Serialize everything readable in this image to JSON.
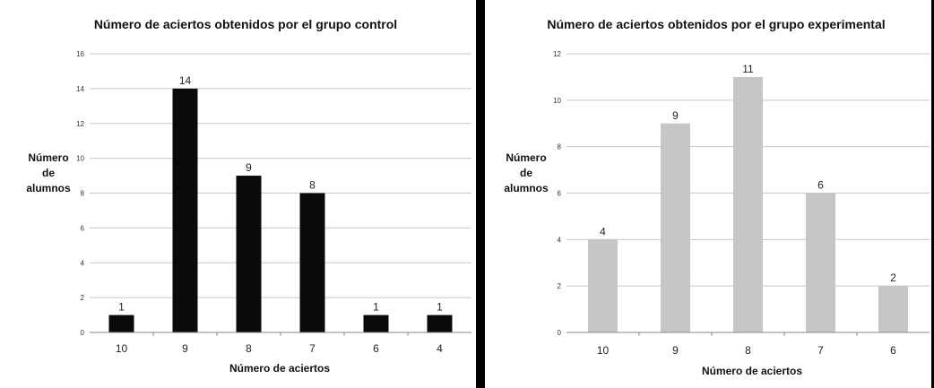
{
  "chart_data": [
    {
      "type": "bar",
      "title": "Número de aciertos obtenidos por el grupo control",
      "xlabel": "Número de aciertos",
      "ylabel": [
        "Número",
        "de",
        "alumnos"
      ],
      "categories": [
        "10",
        "9",
        "8",
        "7",
        "6",
        "4"
      ],
      "values": [
        1,
        14,
        9,
        8,
        1,
        1
      ],
      "data_labels": [
        "1",
        "14",
        "9",
        "8",
        "1",
        "1"
      ],
      "yticks": [
        0,
        2,
        4,
        6,
        8,
        10,
        12,
        14,
        16
      ],
      "ylim": [
        0,
        16
      ],
      "grid": true,
      "legend": "none",
      "bar_color": "#0a0a0a"
    },
    {
      "type": "bar",
      "title": "Número de aciertos obtenidos por el grupo experimental",
      "xlabel": "Número de aciertos",
      "ylabel": [
        "Número",
        "de",
        "alumnos"
      ],
      "categories": [
        "10",
        "9",
        "8",
        "7",
        "6"
      ],
      "values": [
        4,
        9,
        11,
        6,
        2
      ],
      "data_labels": [
        "4",
        "9",
        "11",
        "6",
        "2"
      ],
      "yticks": [
        0,
        2,
        4,
        6,
        8,
        10,
        12
      ],
      "ylim": [
        0,
        12
      ],
      "grid": true,
      "legend": "none",
      "bar_color": "#c6c6c6"
    }
  ]
}
